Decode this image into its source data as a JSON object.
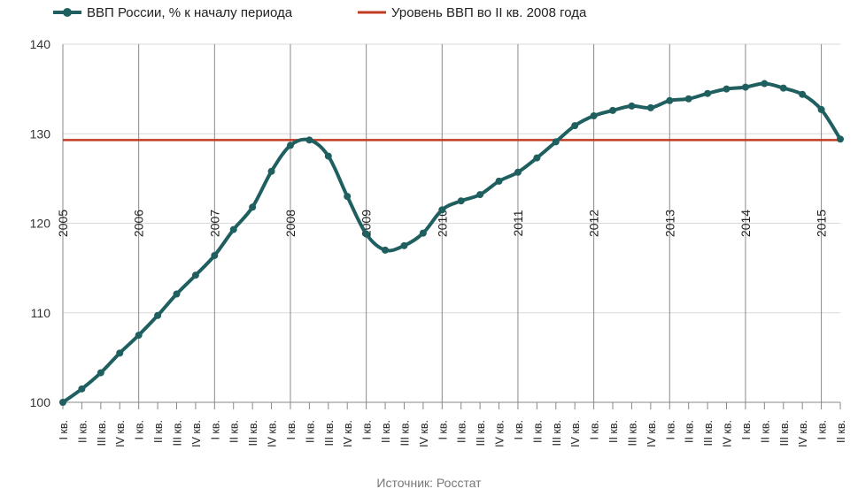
{
  "chart_data": {
    "type": "line",
    "legend_position": "top-left",
    "ylim": [
      100,
      140
    ],
    "yticks": [
      100,
      110,
      120,
      130,
      140
    ],
    "grid": true,
    "categories": [
      "I кв.",
      "II кв.",
      "III кв.",
      "IV кв.",
      "I кв.",
      "II кв.",
      "III кв.",
      "IV кв.",
      "I кв.",
      "II кв.",
      "III кв.",
      "IV кв.",
      "I кв.",
      "II кв.",
      "III кв.",
      "IV кв.",
      "I кв.",
      "II кв.",
      "III кв.",
      "IV кв.",
      "I кв.",
      "II кв.",
      "III кв.",
      "IV кв.",
      "I кв.",
      "II кв.",
      "III кв.",
      "IV кв.",
      "I кв.",
      "II кв.",
      "III кв.",
      "IV кв.",
      "I кв.",
      "II кв.",
      "III кв.",
      "IV кв.",
      "I кв.",
      "II кв.",
      "III кв.",
      "IV кв.",
      "I кв.",
      "II кв."
    ],
    "year_labels": [
      {
        "label": "2005",
        "index": 0
      },
      {
        "label": "2006",
        "index": 4
      },
      {
        "label": "2007",
        "index": 8
      },
      {
        "label": "2008",
        "index": 12
      },
      {
        "label": "2009",
        "index": 16
      },
      {
        "label": "2010",
        "index": 20
      },
      {
        "label": "2011",
        "index": 24
      },
      {
        "label": "2012",
        "index": 28
      },
      {
        "label": "2013",
        "index": 32
      },
      {
        "label": "2014",
        "index": 36
      },
      {
        "label": "2015",
        "index": 40
      }
    ],
    "series": [
      {
        "name": "ВВП России, % к началу периода",
        "color": "#1f5f5f",
        "values": [
          100,
          101.5,
          103.3,
          105.5,
          107.5,
          109.7,
          112.1,
          114.2,
          116.4,
          119.3,
          121.8,
          125.8,
          128.7,
          129.3,
          127.5,
          123.0,
          118.8,
          117.0,
          117.5,
          118.9,
          121.5,
          122.5,
          123.2,
          124.7,
          125.7,
          127.3,
          129.1,
          130.9,
          132.0,
          132.6,
          133.1,
          132.9,
          133.7,
          133.9,
          134.5,
          135.0,
          135.2,
          135.6,
          135.1,
          134.4,
          132.7,
          129.4
        ]
      },
      {
        "name": "Уровень ВВП во II кв. 2008 года",
        "color": "#c23b22",
        "constant": 129.3
      }
    ]
  },
  "source": "Источник: Росстат"
}
